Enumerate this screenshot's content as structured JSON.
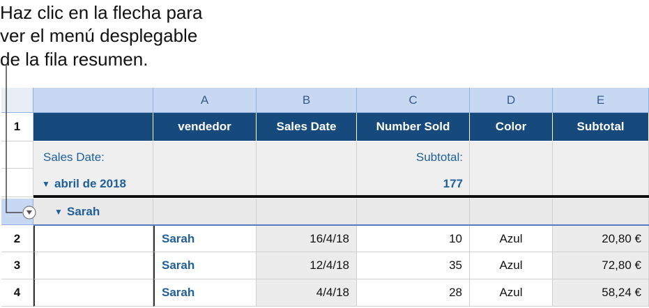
{
  "callout": {
    "lines": [
      "Haz clic en la flecha para",
      "ver el menú desplegable",
      "de la fila resumen."
    ]
  },
  "table": {
    "column_letters": [
      "A",
      "B",
      "C",
      "D",
      "E"
    ],
    "row_numbers": [
      1,
      2,
      3,
      4
    ],
    "header": [
      "vendedor",
      "Sales Date",
      "Number Sold",
      "Color",
      "Subtotal"
    ],
    "summary": {
      "label_1": "Sales Date:",
      "group_1": "abril de 2018",
      "label_2": "Subtotal:",
      "value_2": 177
    },
    "group_row": "Sarah",
    "rows": [
      [
        "Sarah",
        "16/4/18",
        10,
        "Azul",
        "20,80 €"
      ],
      [
        "Sarah",
        "12/4/18",
        35,
        "Azul",
        "72,80 €"
      ],
      [
        "Sarah",
        "4/4/18",
        28,
        "Azul",
        "58,24 €"
      ]
    ]
  }
}
